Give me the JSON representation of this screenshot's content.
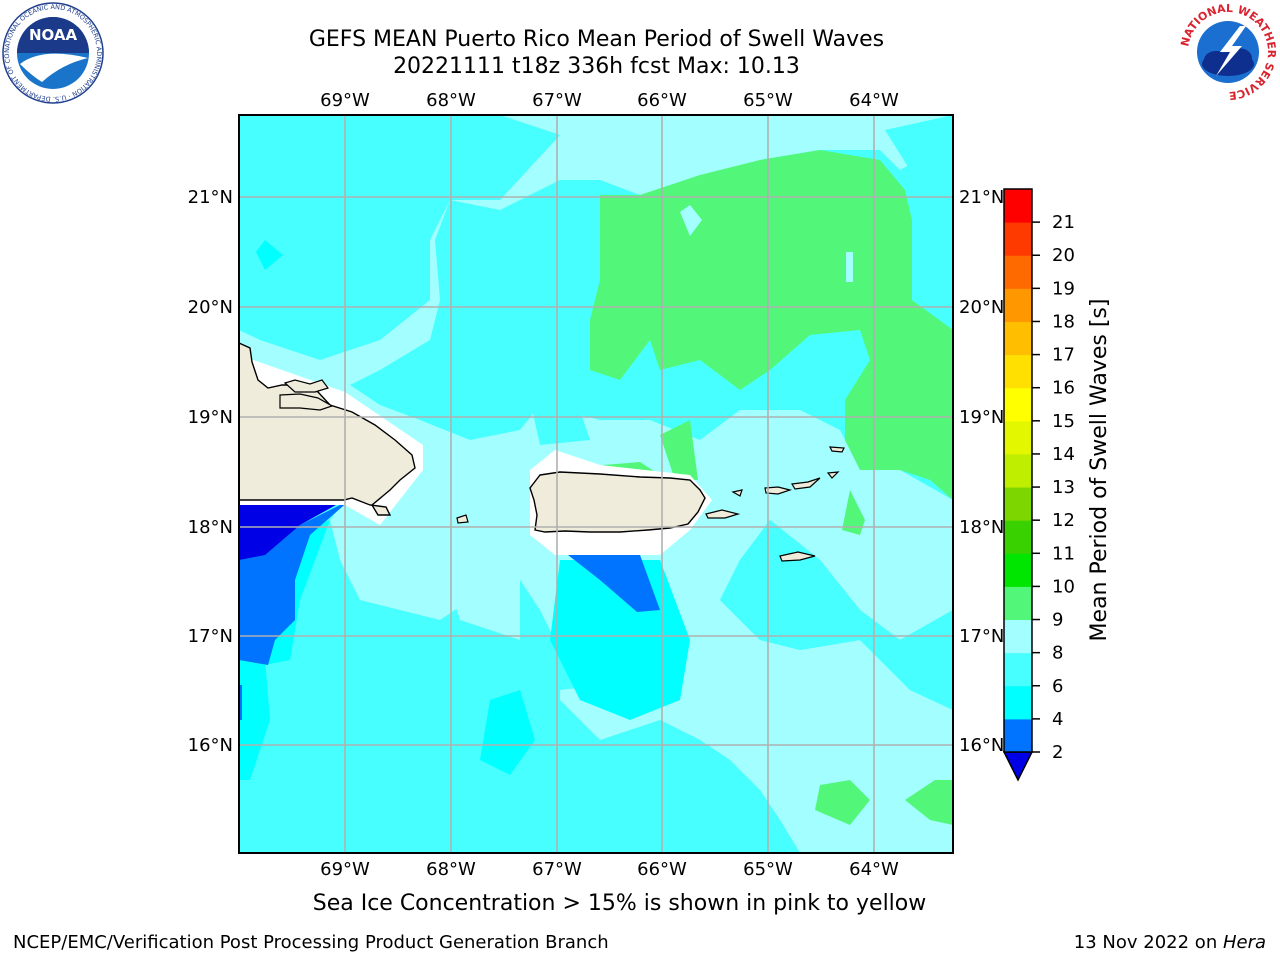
{
  "title": {
    "line1": "GEFS MEAN Puerto Rico Mean Period of Swell Waves",
    "line2": "20221111 t18z 336h fcst   Max: 10.13"
  },
  "map": {
    "lon_labels": [
      "69°W",
      "68°W",
      "67°W",
      "66°W",
      "65°W",
      "64°W"
    ],
    "lat_labels": [
      "21°N",
      "20°N",
      "19°N",
      "18°N",
      "17°N",
      "16°N"
    ],
    "land_color": "#efecdc",
    "ocean_colors": [
      "#47ffff",
      "#a3ffff",
      "#52f77a",
      "#0073ff",
      "#0000e6",
      "#00ffff"
    ]
  },
  "colorbar": {
    "label": "Mean Period of Swell Waves [s]",
    "ticks": [
      "2",
      "4",
      "6",
      "8",
      "9",
      "10",
      "11",
      "12",
      "13",
      "14",
      "15",
      "16",
      "17",
      "18",
      "19",
      "20",
      "21"
    ],
    "colors": [
      "#0073ff",
      "#00ffff",
      "#47ffff",
      "#a3ffff",
      "#52f77a",
      "#00e600",
      "#39d200",
      "#7ed600",
      "#bfee00",
      "#e3f700",
      "#ffff00",
      "#ffe000",
      "#ffbf00",
      "#ff9800",
      "#ff6a00",
      "#ff3a00",
      "#ff0000"
    ],
    "under_color": "#0000e6"
  },
  "note": "Sea Ice Concentration > 15% is shown in pink to yellow",
  "footer": {
    "left": "NCEP/EMC/Verification Post Processing Product Generation Branch",
    "right_date": "13 Nov 2022 on ",
    "right_host": "Hera"
  },
  "logos": {
    "noaa_text": "NOAA",
    "noaa_ring": "NATIONAL OCEANIC AND ATMOSPHERIC ADMINISTRATION · U.S. DEPARTMENT OF COMMERCE",
    "nws_ring": "NATIONAL WEATHER SERVICE"
  }
}
